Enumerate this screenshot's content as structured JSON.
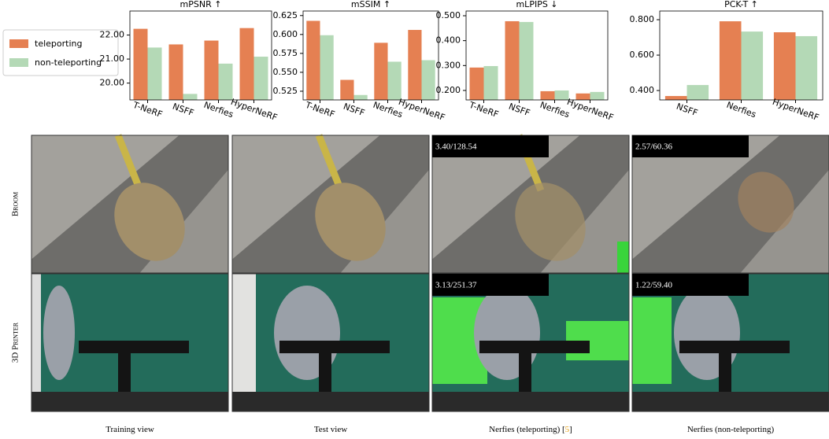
{
  "chart_data": [
    {
      "type": "bar",
      "title": "mPSNR ↑",
      "categories": [
        "T-NeRF",
        "NSFF",
        "Nerfies",
        "HyperNeRF"
      ],
      "series": [
        {
          "name": "teleporting",
          "color": "#e58052",
          "values": [
            22.26,
            21.61,
            21.77,
            22.29
          ]
        },
        {
          "name": "non-teleporting",
          "color": "#b4d9b6",
          "values": [
            21.48,
            19.55,
            20.81,
            21.1
          ]
        }
      ],
      "ylim": [
        19.3,
        23.0
      ],
      "yticks": [
        {
          "value": 20,
          "label": "20.00"
        },
        {
          "value": 21,
          "label": "21.00"
        },
        {
          "value": 22,
          "label": "22.00"
        }
      ]
    },
    {
      "type": "bar",
      "title": "mSSIM ↑",
      "categories": [
        "T-NeRF",
        "NSFF",
        "Nerfies",
        "HyperNeRF"
      ],
      "series": [
        {
          "color": "#e58052",
          "values": [
            0.618,
            0.54,
            0.589,
            0.606
          ]
        },
        {
          "color": "#b4d9b6",
          "values": [
            0.599,
            0.52,
            0.564,
            0.566
          ]
        }
      ],
      "ylim": [
        0.5135,
        0.631
      ],
      "yticks": [
        0.525,
        {
          "value": 0.55,
          "label": "0.550"
        },
        0.575,
        {
          "value": 0.6,
          "label": "0.600"
        },
        0.625
      ]
    },
    {
      "type": "bar",
      "title": "mLPIPS ↓",
      "categories": [
        "T-NeRF",
        "NSFF",
        "Nerfies",
        "HyperNeRF"
      ],
      "series": [
        {
          "color": "#e58052",
          "values": [
            0.292,
            0.478,
            0.197,
            0.188
          ]
        },
        {
          "color": "#b4d9b6",
          "values": [
            0.298,
            0.475,
            0.2,
            0.194
          ]
        }
      ],
      "ylim": [
        0.162,
        0.519
      ],
      "yticks": [
        {
          "value": 0.2,
          "label": "0.200"
        },
        {
          "value": 0.3,
          "label": "0.300"
        },
        {
          "value": 0.4,
          "label": "0.400"
        },
        {
          "value": 0.5,
          "label": "0.500"
        }
      ]
    },
    {
      "type": "bar",
      "title": "PCK-T ↑",
      "categories": [
        "NSFF",
        "Nerfies",
        "HyperNeRF"
      ],
      "series": [
        {
          "color": "#e58052",
          "values": [
            0.369,
            0.791,
            0.729
          ]
        },
        {
          "color": "#b4d9b6",
          "values": [
            0.431,
            0.733,
            0.707
          ]
        }
      ],
      "ylim": [
        0.347,
        0.849
      ],
      "yticks": [
        {
          "value": 0.4,
          "label": "0.400"
        },
        {
          "value": 0.6,
          "label": "0.600"
        },
        {
          "value": 0.8,
          "label": "0.800"
        }
      ]
    }
  ],
  "figure": {
    "rows": [
      "Broom",
      "3D Printer"
    ],
    "columns": [
      [
        "Training view"
      ],
      [
        "Test view"
      ],
      [
        "Nerfies (teleporting) [",
        "5",
        "]"
      ],
      [
        "Nerfies (non-teleporting)"
      ]
    ],
    "overlays": [
      [
        "3.40/128.54",
        "2.57/60.36"
      ],
      [
        "3.13/251.37",
        "1.22/59.40"
      ]
    ]
  }
}
